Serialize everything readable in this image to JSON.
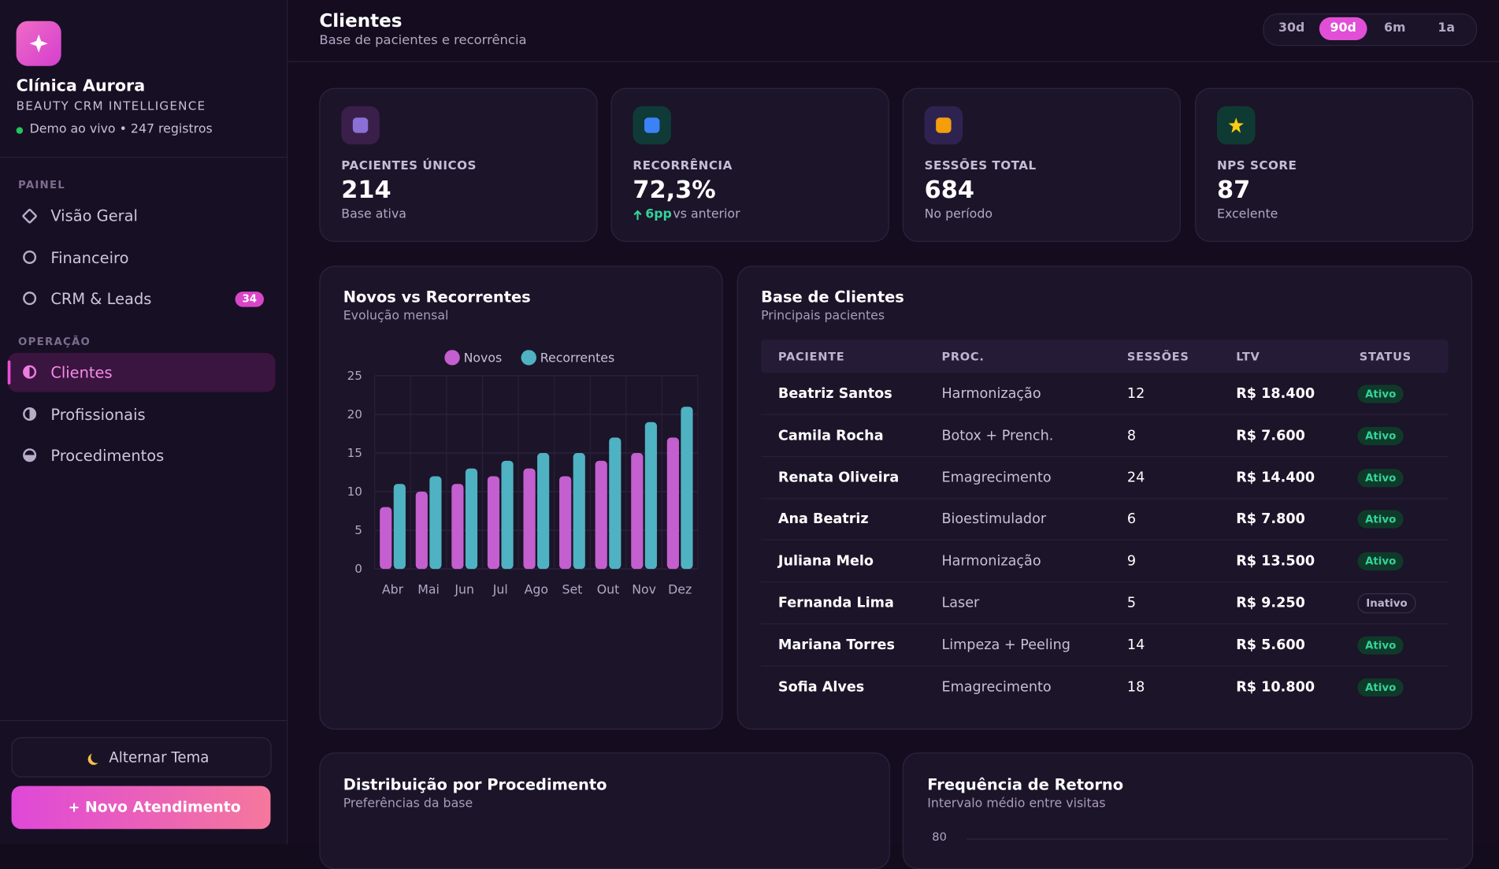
{
  "sidebar": {
    "brand": "Clínica Aurora",
    "tagline": "BEAUTY CRM INTELLIGENCE",
    "status": "Demo ao vivo • 247 registros",
    "sections": [
      {
        "title": "PAINEL",
        "items": [
          "Visão Geral",
          "Financeiro",
          "CRM & Leads"
        ]
      },
      {
        "title": "OPERAÇÃO",
        "items": [
          "Clientes",
          "Profissionais",
          "Procedimentos"
        ]
      }
    ],
    "badge": "34",
    "theme_button": "Alternar Tema",
    "cta_button": "Novo Atendimento"
  },
  "header": {
    "title": "Clientes",
    "subtitle": "Base de pacientes e recorrência",
    "ranges": [
      "30d",
      "90d",
      "6m",
      "1a"
    ]
  },
  "kpis": [
    {
      "label": "PACIENTES ÚNICOS",
      "value": "214",
      "note": "Base ativa"
    },
    {
      "label": "RECORRÊNCIA",
      "value": "72,3%",
      "delta": "6pp",
      "note": "vs anterior"
    },
    {
      "label": "SESSÕES TOTAL",
      "value": "684",
      "note": "No período"
    },
    {
      "label": "NPS SCORE",
      "value": "87",
      "note": "Excelente"
    }
  ],
  "new_vs_returning": {
    "type": "bar",
    "title": "Novos vs Recorrentes",
    "subtitle": "Evolução mensal",
    "categories": [
      "Abr",
      "Mai",
      "Jun",
      "Jul",
      "Ago",
      "Set",
      "Out",
      "Nov",
      "Dez"
    ],
    "series": [
      {
        "name": "Novos",
        "color": "#c45fcf",
        "values": [
          8,
          10,
          11,
          12,
          13,
          12,
          14,
          15,
          17
        ]
      },
      {
        "name": "Recorrentes",
        "color": "#4fb2c2",
        "values": [
          11,
          12,
          13,
          14,
          15,
          15,
          17,
          19,
          21
        ]
      }
    ],
    "ylim": [
      0,
      25
    ],
    "yticks": [
      0,
      5,
      10,
      15,
      20,
      25
    ],
    "grid": true
  },
  "clients_table": {
    "title": "Base de Clientes",
    "subtitle": "Principais pacientes",
    "columns": [
      "PACIENTE",
      "PROC.",
      "SESSÕES",
      "LTV",
      "STATUS"
    ],
    "rows": [
      [
        "Beatriz Santos",
        "Harmonização",
        "12",
        "R$ 18.400",
        "Ativo"
      ],
      [
        "Camila Rocha",
        "Botox + Prench.",
        "8",
        "R$ 7.600",
        "Ativo"
      ],
      [
        "Renata Oliveira",
        "Emagrecimento",
        "24",
        "R$ 14.400",
        "Ativo"
      ],
      [
        "Ana Beatriz",
        "Bioestimulador",
        "6",
        "R$ 7.800",
        "Ativo"
      ],
      [
        "Juliana Melo",
        "Harmonização",
        "9",
        "R$ 13.500",
        "Ativo"
      ],
      [
        "Fernanda Lima",
        "Laser",
        "5",
        "R$ 9.250",
        "Inativo"
      ],
      [
        "Mariana Torres",
        "Limpeza + Peeling",
        "14",
        "R$ 5.600",
        "Ativo"
      ],
      [
        "Sofia Alves",
        "Emagrecimento",
        "18",
        "R$ 10.800",
        "Ativo"
      ]
    ]
  },
  "distribution": {
    "title": "Distribuição por Procedimento",
    "subtitle": "Preferências da base"
  },
  "frequency": {
    "title": "Frequência de Retorno",
    "subtitle": "Intervalo médio entre visitas",
    "yticks": [
      80
    ]
  }
}
